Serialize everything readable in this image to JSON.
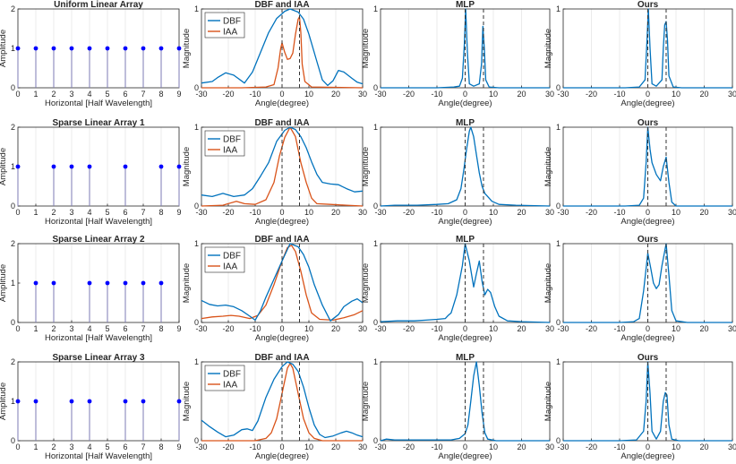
{
  "colors": {
    "dbf": "#0072BD",
    "iaa": "#D95319",
    "stem": "#7E7BB5",
    "marker": "#0000FF",
    "ref": "#333333",
    "grid": "#E6E6E6",
    "axis": "#262626"
  },
  "legend": {
    "dbf": "DBF",
    "iaa": "IAA"
  },
  "titles": {
    "arrays": [
      "Uniform Linear Array",
      "Sparse Linear Array 1",
      "Sparse Linear Array 2",
      "Sparse Linear Array 3"
    ],
    "dbf_iaa": "DBF and IAA",
    "mlp": "MLP",
    "ours": "Ours"
  },
  "labels": {
    "array_x": "Horizontal [Half Wavelength]",
    "array_y": "Amplitude",
    "angle_x": "Angle(degree)",
    "mag_y": "Magnitude"
  },
  "chart_data": {
    "type": "figure-grid",
    "rows": 4,
    "true_angles_deg": [
      0,
      6.5
    ],
    "array_axes": {
      "xlim": [
        0,
        9
      ],
      "ylim": [
        0,
        2
      ],
      "xticks": [
        0,
        1,
        2,
        3,
        4,
        5,
        6,
        7,
        8,
        9
      ],
      "yticks": [
        0,
        1,
        2
      ]
    },
    "spectrum_axes": {
      "xlim": [
        -30,
        30
      ],
      "ylim": [
        0,
        1
      ],
      "xticks": [
        -30,
        -20,
        -10,
        0,
        10,
        20,
        30
      ],
      "yticks": [
        0,
        1
      ]
    },
    "array_stems": [
      [
        0,
        1,
        2,
        3,
        4,
        5,
        6,
        7,
        8,
        9
      ],
      [
        0,
        2,
        3,
        4,
        6,
        8,
        9
      ],
      [
        1,
        2,
        4,
        5,
        6,
        7,
        8
      ],
      [
        0,
        1,
        3,
        4,
        6,
        7,
        9
      ]
    ],
    "panels": [
      {
        "dbf": [
          [
            -30,
            0.06
          ],
          [
            -26,
            0.08
          ],
          [
            -24,
            0.13
          ],
          [
            -21,
            0.19
          ],
          [
            -18,
            0.16
          ],
          [
            -14,
            0.06
          ],
          [
            -11,
            0.2
          ],
          [
            -8,
            0.45
          ],
          [
            -5,
            0.7
          ],
          [
            -2,
            0.88
          ],
          [
            1,
            0.97
          ],
          [
            3,
            1.0
          ],
          [
            6,
            0.96
          ],
          [
            8,
            0.87
          ],
          [
            10,
            0.68
          ],
          [
            13,
            0.33
          ],
          [
            15,
            0.1
          ],
          [
            17,
            0.03
          ],
          [
            19,
            0.09
          ],
          [
            21,
            0.22
          ],
          [
            23,
            0.2
          ],
          [
            26,
            0.12
          ],
          [
            28,
            0.07
          ],
          [
            30,
            0.05
          ]
        ],
        "iaa": [
          [
            -30,
            0
          ],
          [
            -15,
            0
          ],
          [
            -6,
            0.01
          ],
          [
            -3,
            0.04
          ],
          [
            -1.5,
            0.25
          ],
          [
            -0.5,
            0.5
          ],
          [
            0,
            0.57
          ],
          [
            1,
            0.45
          ],
          [
            2,
            0.36
          ],
          [
            3,
            0.37
          ],
          [
            4,
            0.44
          ],
          [
            5,
            0.68
          ],
          [
            6,
            0.87
          ],
          [
            6.5,
            0.9
          ],
          [
            7,
            0.7
          ],
          [
            7.5,
            0.3
          ],
          [
            8.5,
            0.08
          ],
          [
            11,
            0.01
          ],
          [
            30,
            0
          ]
        ]
      },
      {
        "dbf": [
          [
            -30,
            0.14
          ],
          [
            -26,
            0.12
          ],
          [
            -22,
            0.16
          ],
          [
            -18,
            0.12
          ],
          [
            -14,
            0.14
          ],
          [
            -11,
            0.22
          ],
          [
            -8,
            0.38
          ],
          [
            -5,
            0.55
          ],
          [
            -2,
            0.82
          ],
          [
            1,
            0.96
          ],
          [
            3,
            1.0
          ],
          [
            5,
            0.97
          ],
          [
            7,
            0.88
          ],
          [
            9,
            0.74
          ],
          [
            11,
            0.56
          ],
          [
            13,
            0.4
          ],
          [
            15,
            0.3
          ],
          [
            18,
            0.28
          ],
          [
            21,
            0.27
          ],
          [
            24,
            0.22
          ],
          [
            27,
            0.18
          ],
          [
            30,
            0.19
          ]
        ],
        "iaa": [
          [
            -30,
            0
          ],
          [
            -22,
            0.01
          ],
          [
            -17,
            0.06
          ],
          [
            -14,
            0.03
          ],
          [
            -10,
            0.02
          ],
          [
            -6,
            0.08
          ],
          [
            -3,
            0.3
          ],
          [
            -1,
            0.63
          ],
          [
            1,
            0.87
          ],
          [
            3,
            1.0
          ],
          [
            5,
            0.88
          ],
          [
            7,
            0.55
          ],
          [
            9,
            0.3
          ],
          [
            11,
            0.1
          ],
          [
            13,
            0.03
          ],
          [
            18,
            0.02
          ],
          [
            24,
            0.01
          ],
          [
            30,
            0
          ]
        ]
      },
      {
        "dbf": [
          [
            -30,
            0.28
          ],
          [
            -27,
            0.23
          ],
          [
            -24,
            0.21
          ],
          [
            -21,
            0.22
          ],
          [
            -18,
            0.2
          ],
          [
            -15,
            0.15
          ],
          [
            -12,
            0.08
          ],
          [
            -10,
            0.03
          ],
          [
            -8,
            0.15
          ],
          [
            -6,
            0.32
          ],
          [
            -3,
            0.55
          ],
          [
            0,
            0.78
          ],
          [
            3,
            1.0
          ],
          [
            6,
            0.96
          ],
          [
            8,
            0.86
          ],
          [
            10,
            0.7
          ],
          [
            12,
            0.48
          ],
          [
            15,
            0.22
          ],
          [
            18,
            0.02
          ],
          [
            21,
            0.1
          ],
          [
            23,
            0.2
          ],
          [
            26,
            0.27
          ],
          [
            28,
            0.3
          ],
          [
            30,
            0.25
          ]
        ],
        "iaa": [
          [
            -30,
            0.05
          ],
          [
            -26,
            0.07
          ],
          [
            -22,
            0.08
          ],
          [
            -19,
            0.09
          ],
          [
            -16,
            0.08
          ],
          [
            -12,
            0.05
          ],
          [
            -9,
            0.09
          ],
          [
            -6,
            0.22
          ],
          [
            -3,
            0.48
          ],
          [
            0,
            0.78
          ],
          [
            2,
            0.95
          ],
          [
            3.5,
            0.98
          ],
          [
            5,
            0.9
          ],
          [
            7,
            0.65
          ],
          [
            9,
            0.35
          ],
          [
            11,
            0.12
          ],
          [
            14,
            0.04
          ],
          [
            19,
            0.03
          ],
          [
            23,
            0.06
          ],
          [
            27,
            0.1
          ],
          [
            30,
            0.15
          ]
        ]
      },
      {
        "dbf": [
          [
            -30,
            0.26
          ],
          [
            -27,
            0.18
          ],
          [
            -24,
            0.11
          ],
          [
            -21,
            0.05
          ],
          [
            -18,
            0.07
          ],
          [
            -15,
            0.14
          ],
          [
            -13,
            0.15
          ],
          [
            -11,
            0.13
          ],
          [
            -9,
            0.25
          ],
          [
            -6,
            0.55
          ],
          [
            -3,
            0.78
          ],
          [
            0,
            0.94
          ],
          [
            2,
            1.0
          ],
          [
            4,
            0.97
          ],
          [
            6,
            0.88
          ],
          [
            8,
            0.68
          ],
          [
            10,
            0.42
          ],
          [
            12,
            0.2
          ],
          [
            14,
            0.08
          ],
          [
            16,
            0.04
          ],
          [
            19,
            0.06
          ],
          [
            22,
            0.1
          ],
          [
            24,
            0.12
          ],
          [
            26,
            0.1
          ],
          [
            28,
            0.07
          ],
          [
            30,
            0.05
          ]
        ],
        "iaa": [
          [
            -30,
            0
          ],
          [
            -10,
            0
          ],
          [
            -6,
            0.03
          ],
          [
            -4,
            0.1
          ],
          [
            -2,
            0.28
          ],
          [
            0,
            0.6
          ],
          [
            2,
            0.92
          ],
          [
            3,
            0.98
          ],
          [
            4,
            0.92
          ],
          [
            6,
            0.6
          ],
          [
            8,
            0.28
          ],
          [
            10,
            0.1
          ],
          [
            12,
            0.03
          ],
          [
            15,
            0
          ],
          [
            30,
            0
          ]
        ]
      }
    ],
    "mlp": [
      [
        [
          -30,
          0
        ],
        [
          -10,
          0
        ],
        [
          -4,
          0.01
        ],
        [
          -2,
          0.02
        ],
        [
          -1,
          0.12
        ],
        [
          -0.3,
          0.55
        ],
        [
          0.2,
          1.0
        ],
        [
          0.8,
          0.45
        ],
        [
          1.5,
          0.05
        ],
        [
          3,
          0.02
        ],
        [
          5,
          0.05
        ],
        [
          5.8,
          0.3
        ],
        [
          6.3,
          0.78
        ],
        [
          6.8,
          0.5
        ],
        [
          7.3,
          0.1
        ],
        [
          8.5,
          0.01
        ],
        [
          12,
          0
        ],
        [
          30,
          0
        ]
      ],
      [
        [
          -30,
          0
        ],
        [
          -25,
          0.01
        ],
        [
          -17,
          0.01
        ],
        [
          -10,
          0.02
        ],
        [
          -6,
          0.03
        ],
        [
          -3,
          0.08
        ],
        [
          -1.5,
          0.22
        ],
        [
          -0.5,
          0.45
        ],
        [
          0.5,
          0.72
        ],
        [
          1.5,
          0.95
        ],
        [
          2,
          1.0
        ],
        [
          3,
          0.88
        ],
        [
          4,
          0.65
        ],
        [
          5,
          0.42
        ],
        [
          6,
          0.25
        ],
        [
          7,
          0.16
        ],
        [
          8,
          0.12
        ],
        [
          9.5,
          0.06
        ],
        [
          12,
          0.02
        ],
        [
          18,
          0.01
        ],
        [
          30,
          0
        ]
      ],
      [
        [
          -30,
          0.01
        ],
        [
          -24,
          0.02
        ],
        [
          -18,
          0.02
        ],
        [
          -14,
          0.03
        ],
        [
          -10,
          0.04
        ],
        [
          -7,
          0.05
        ],
        [
          -6,
          0.09
        ],
        [
          -5,
          0.12
        ],
        [
          -3,
          0.35
        ],
        [
          -1,
          0.72
        ],
        [
          0,
          1.0
        ],
        [
          1.5,
          0.78
        ],
        [
          3,
          0.45
        ],
        [
          4,
          0.62
        ],
        [
          5,
          0.78
        ],
        [
          6,
          0.52
        ],
        [
          7,
          0.35
        ],
        [
          8,
          0.42
        ],
        [
          9,
          0.38
        ],
        [
          10.5,
          0.2
        ],
        [
          12,
          0.08
        ],
        [
          15,
          0.02
        ],
        [
          20,
          0.01
        ],
        [
          30,
          0
        ]
      ],
      [
        [
          -30,
          0
        ],
        [
          -28,
          0.02
        ],
        [
          -25,
          0.01
        ],
        [
          -20,
          0.01
        ],
        [
          -15,
          0.01
        ],
        [
          -10,
          0.01
        ],
        [
          -5,
          0.01
        ],
        [
          -2,
          0.03
        ],
        [
          0,
          0.09
        ],
        [
          1,
          0.2
        ],
        [
          2,
          0.5
        ],
        [
          3,
          0.82
        ],
        [
          4,
          1.0
        ],
        [
          5,
          0.7
        ],
        [
          6,
          0.35
        ],
        [
          7,
          0.1
        ],
        [
          8,
          0.02
        ],
        [
          11,
          0
        ],
        [
          30,
          0
        ]
      ]
    ],
    "ours": [
      [
        [
          -30,
          0
        ],
        [
          -8,
          0
        ],
        [
          -3,
          0.01
        ],
        [
          -1,
          0.1
        ],
        [
          -0.3,
          0.6
        ],
        [
          0.2,
          1.0
        ],
        [
          0.8,
          0.5
        ],
        [
          1.5,
          0.05
        ],
        [
          3,
          0.02
        ],
        [
          5,
          0.1
        ],
        [
          5.5,
          0.5
        ],
        [
          6,
          0.8
        ],
        [
          6.5,
          0.84
        ],
        [
          7,
          0.6
        ],
        [
          7.5,
          0.15
        ],
        [
          9,
          0.01
        ],
        [
          12,
          0
        ],
        [
          30,
          0
        ]
      ],
      [
        [
          -30,
          0
        ],
        [
          -8,
          0
        ],
        [
          -3,
          0.01
        ],
        [
          -1.5,
          0.1
        ],
        [
          -0.6,
          0.55
        ],
        [
          0,
          1.0
        ],
        [
          0.8,
          0.72
        ],
        [
          1.5,
          0.55
        ],
        [
          3,
          0.4
        ],
        [
          4.5,
          0.32
        ],
        [
          5.5,
          0.5
        ],
        [
          6.5,
          0.62
        ],
        [
          7.5,
          0.3
        ],
        [
          8.5,
          0.05
        ],
        [
          10,
          0
        ],
        [
          30,
          0
        ]
      ],
      [
        [
          -30,
          0
        ],
        [
          -10,
          0
        ],
        [
          -5,
          0.01
        ],
        [
          -3,
          0.05
        ],
        [
          -1.5,
          0.4
        ],
        [
          0,
          0.88
        ],
        [
          1,
          0.7
        ],
        [
          2,
          0.5
        ],
        [
          3,
          0.43
        ],
        [
          4,
          0.48
        ],
        [
          5,
          0.72
        ],
        [
          6.5,
          1.0
        ],
        [
          7.5,
          0.6
        ],
        [
          8.5,
          0.15
        ],
        [
          10,
          0.02
        ],
        [
          14,
          0
        ],
        [
          30,
          0
        ]
      ],
      [
        [
          -30,
          0
        ],
        [
          -10,
          0
        ],
        [
          -4,
          0.01
        ],
        [
          -1.5,
          0.12
        ],
        [
          -0.6,
          0.5
        ],
        [
          0,
          1.0
        ],
        [
          0.8,
          0.6
        ],
        [
          1.5,
          0.12
        ],
        [
          3,
          0.02
        ],
        [
          4.5,
          0.12
        ],
        [
          5.5,
          0.5
        ],
        [
          6.2,
          0.61
        ],
        [
          6.8,
          0.58
        ],
        [
          7.5,
          0.2
        ],
        [
          8.5,
          0.02
        ],
        [
          11,
          0
        ],
        [
          30,
          0
        ]
      ]
    ]
  }
}
